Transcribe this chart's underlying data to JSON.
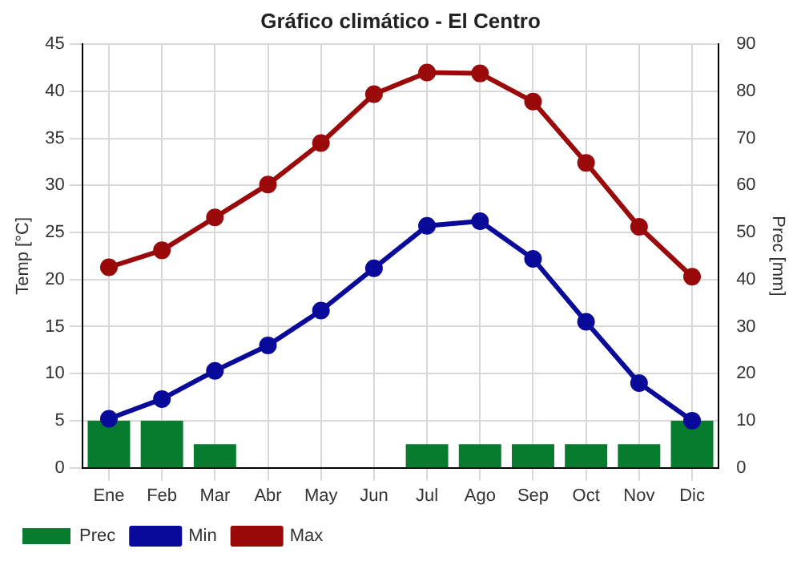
{
  "chart_data": {
    "type": "line",
    "title": "Gráfico climático - El Centro",
    "ylabel": "Temp [°C]",
    "y2label": "Prec [mm]",
    "categories": [
      "Ene",
      "Feb",
      "Mar",
      "Abr",
      "May",
      "Jun",
      "Jul",
      "Ago",
      "Sep",
      "Oct",
      "Nov",
      "Dic"
    ],
    "series": [
      {
        "name": "Prec",
        "type": "bar",
        "axis": "y2",
        "color": "#077c2f",
        "values": [
          10,
          10,
          5,
          0,
          0,
          0,
          5,
          5,
          5,
          5,
          5,
          10
        ]
      },
      {
        "name": "Min",
        "color": "#0a0a9a",
        "values": [
          5.2,
          7.3,
          10.3,
          13.0,
          16.7,
          21.2,
          25.7,
          26.2,
          22.2,
          15.5,
          9.0,
          5.0
        ]
      },
      {
        "name": "Max",
        "color": "#9a0a0a",
        "values": [
          21.3,
          23.1,
          26.6,
          30.1,
          34.5,
          39.7,
          42.0,
          41.9,
          38.9,
          32.4,
          25.6,
          20.3
        ]
      }
    ],
    "ylim": [
      0,
      45
    ],
    "yticks": [
      0,
      5,
      10,
      15,
      20,
      25,
      30,
      35,
      40,
      45
    ],
    "y2lim": [
      0,
      90
    ],
    "y2ticks": [
      0,
      10,
      20,
      30,
      40,
      50,
      60,
      70,
      80,
      90
    ],
    "grid": true,
    "legend": "bottom",
    "marker": "circle",
    "line_style": "solid"
  }
}
